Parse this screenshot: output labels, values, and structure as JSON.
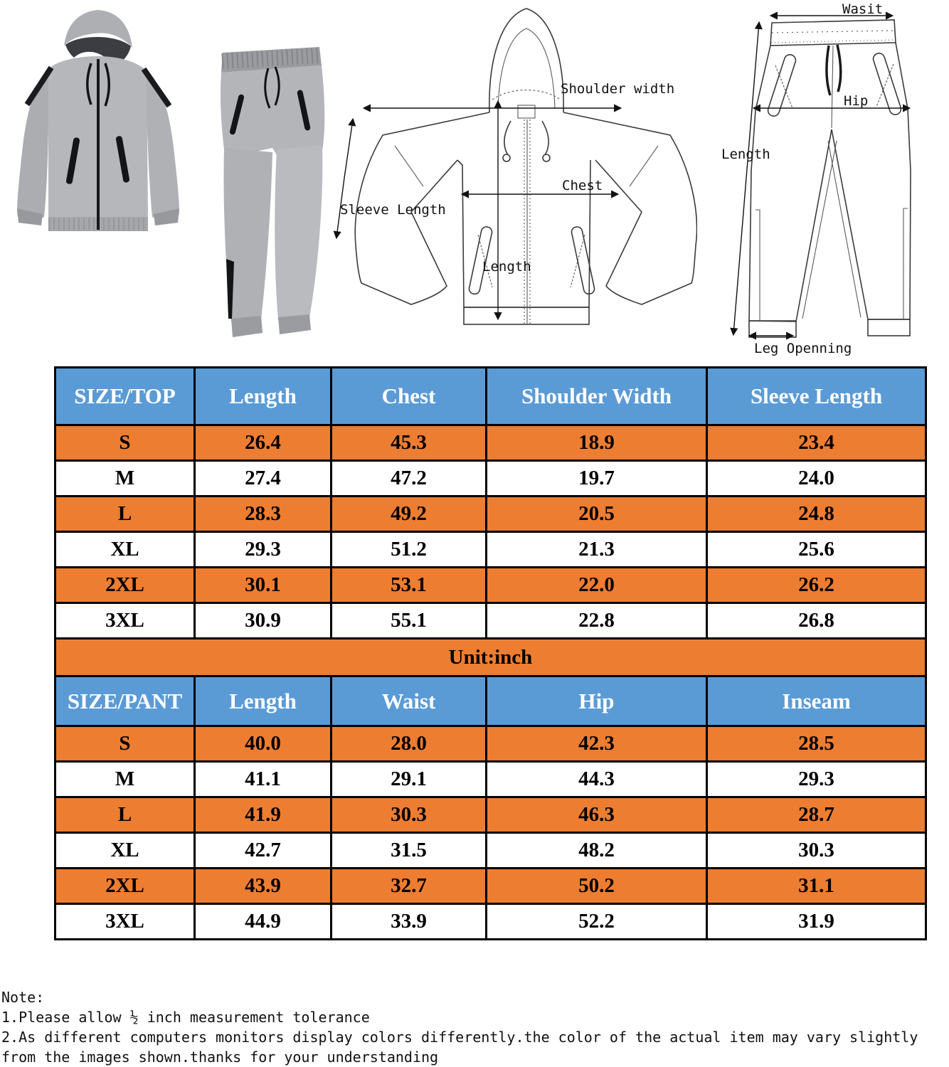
{
  "colors": {
    "header_blue": "#5B9BD5",
    "row_orange": "#ED7D31",
    "row_white": "#ffffff",
    "border_black": "#000000",
    "header_text": "#ffffff",
    "cell_text": "#000000"
  },
  "diagrams": {
    "jacket_labels": {
      "shoulder_width": "Shoulder width",
      "chest": "Chest",
      "sleeve_length": "Sleeve Length",
      "length": "Length"
    },
    "pant_labels": {
      "waist": "Wasit",
      "hip": "Hip",
      "length": "Length",
      "leg_opening": "Leg Openning"
    }
  },
  "unit_row": "Unit:inch",
  "tables": {
    "top": {
      "headers": [
        "SIZE/TOP",
        "Length",
        "Chest",
        "Shoulder Width",
        "Sleeve Length"
      ],
      "rows": [
        [
          "S",
          "26.4",
          "45.3",
          "18.9",
          "23.4"
        ],
        [
          "M",
          "27.4",
          "47.2",
          "19.7",
          "24.0"
        ],
        [
          "L",
          "28.3",
          "49.2",
          "20.5",
          "24.8"
        ],
        [
          "XL",
          "29.3",
          "51.2",
          "21.3",
          "25.6"
        ],
        [
          "2XL",
          "30.1",
          "53.1",
          "22.0",
          "26.2"
        ],
        [
          "3XL",
          "30.9",
          "55.1",
          "22.8",
          "26.8"
        ]
      ]
    },
    "pant": {
      "headers": [
        "SIZE/PANT",
        "Length",
        "Waist",
        "Hip",
        "Inseam"
      ],
      "rows": [
        [
          "S",
          "40.0",
          "28.0",
          "42.3",
          "28.5"
        ],
        [
          "M",
          "41.1",
          "29.1",
          "44.3",
          "29.3"
        ],
        [
          "L",
          "41.9",
          "30.3",
          "46.3",
          "28.7"
        ],
        [
          "XL",
          "42.7",
          "31.5",
          "48.2",
          "30.3"
        ],
        [
          "2XL",
          "43.9",
          "32.7",
          "50.2",
          "31.1"
        ],
        [
          "3XL",
          "44.9",
          "33.9",
          "52.2",
          "31.9"
        ]
      ]
    }
  },
  "notes": {
    "title": "Note:",
    "lines": [
      "1.Please allow ½ inch measurement tolerance",
      "2.As different computers monitors display colors differently.the color of the actual item may vary slightly",
      "from the images shown.thanks for your understanding"
    ]
  }
}
